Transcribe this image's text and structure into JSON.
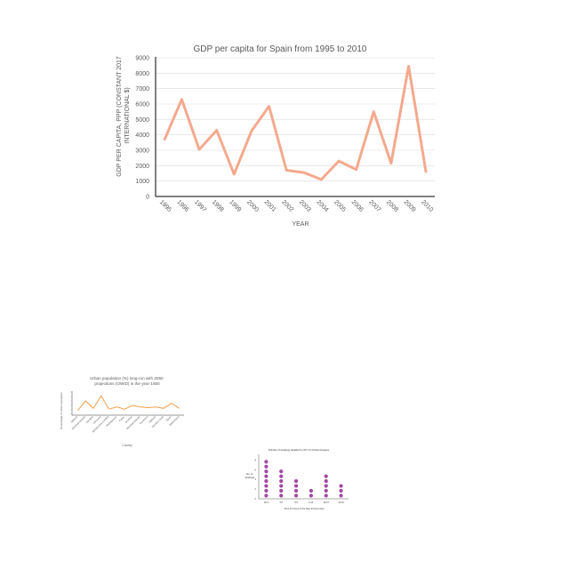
{
  "chart_data": [
    {
      "type": "line",
      "title": "GDP per capita for Spain from 1995 to 2010",
      "xlabel": "YEAR",
      "ylabel": "GDP PER CAPITA, PPP (CONSTANT 2017 INTERNATIONAL $)",
      "ylim": [
        0,
        9000
      ],
      "yticks": [
        0,
        1000,
        2000,
        3000,
        4000,
        5000,
        6000,
        7000,
        8000,
        9000
      ],
      "categories": [
        "1995",
        "1996",
        "1997",
        "1998",
        "1999",
        "2000",
        "2001",
        "2002",
        "2003",
        "2004",
        "2005",
        "2006",
        "2007",
        "2008",
        "2009",
        "2010"
      ],
      "series": [
        {
          "values": [
            3650,
            6300,
            3050,
            4300,
            1450,
            4250,
            5850,
            1700,
            1550,
            1100,
            2300,
            1750,
            5500,
            2150,
            8450,
            1550
          ]
        }
      ],
      "grid": true,
      "legend": "none",
      "colors": {
        "line": "#f4a98d",
        "grid": "#dcdcdc",
        "text": "#595959",
        "axis": "#000000"
      }
    },
    {
      "type": "line",
      "title": "Urban population (%) long-run with 2050 projections (OWID) in the year 1650",
      "xlabel": "Country",
      "ylabel": "Percentage of urban population",
      "categories": [
        "Djibouti",
        "Marshall Islands",
        "Namibia",
        "Lithuania",
        "Middle East (OWID)",
        "Madagascar",
        "Palau",
        "Burkina",
        "Marshall Islands",
        "Dominica",
        "Djibouti",
        "Southern Asia",
        "Spain",
        "Switzerland"
      ],
      "series": [
        {
          "values": [
            5,
            18,
            8,
            25,
            7,
            10,
            7,
            12,
            10,
            9,
            10,
            8,
            15,
            8
          ]
        }
      ],
      "colors": {
        "line": "#f0a04b"
      }
    },
    {
      "type": "scatter",
      "title": "Number of landings handled by ATC for Dubai Airspace",
      "xlabel": "Time (in hours of the day) 24 hour style",
      "ylabel": "No. of landings",
      "categories": [
        "00-3",
        "3-6",
        "6-9",
        "9-12",
        "12-15",
        "15-18"
      ],
      "values": [
        8,
        6,
        4,
        2,
        5,
        3
      ],
      "colors": {
        "dots": "#a347a3"
      }
    }
  ]
}
